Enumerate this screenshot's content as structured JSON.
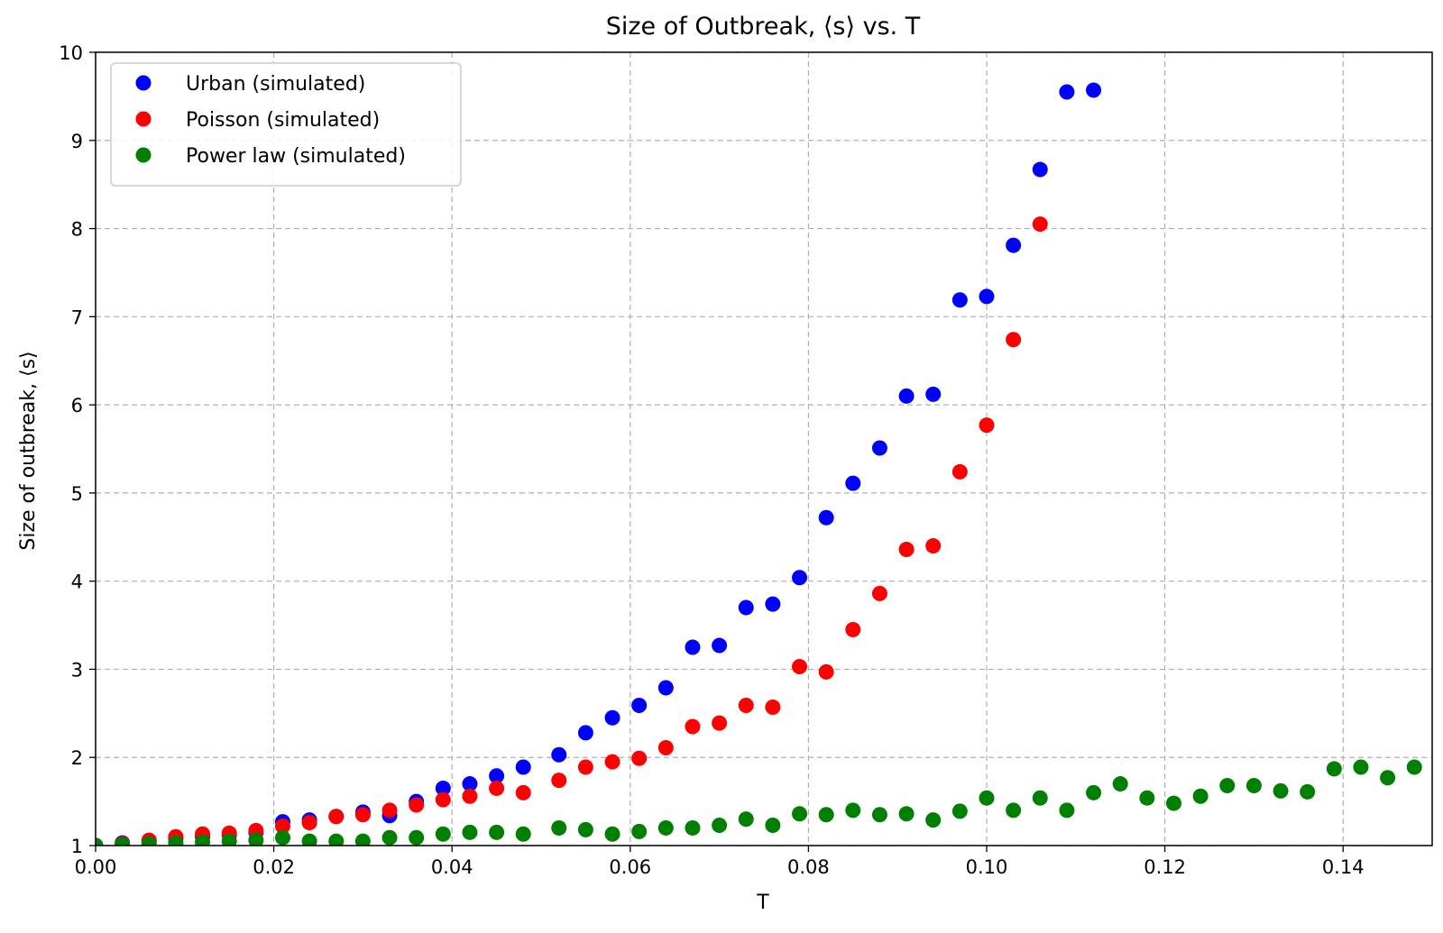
{
  "chart_data": {
    "type": "scatter",
    "title": "Size of Outbreak, ⟨s⟩ vs. T",
    "xlabel": "T",
    "ylabel": "Size of outbreak, ⟨s⟩",
    "xlim": [
      0.0,
      0.15
    ],
    "ylim": [
      1,
      10
    ],
    "xticks": [
      0.0,
      0.02,
      0.04,
      0.06,
      0.08,
      0.1,
      0.12,
      0.14
    ],
    "xtick_labels": [
      "0.00",
      "0.02",
      "0.04",
      "0.06",
      "0.08",
      "0.10",
      "0.12",
      "0.14"
    ],
    "yticks": [
      1,
      2,
      3,
      4,
      5,
      6,
      7,
      8,
      9,
      10
    ],
    "ytick_labels": [
      "1",
      "2",
      "3",
      "4",
      "5",
      "6",
      "7",
      "8",
      "9",
      "10"
    ],
    "grid": true,
    "legend_position": "top-left",
    "series": [
      {
        "name": "Urban (simulated)",
        "color": "#0000ff",
        "x": [
          0.0,
          0.003,
          0.006,
          0.009,
          0.012,
          0.015,
          0.018,
          0.021,
          0.024,
          0.027,
          0.03,
          0.033,
          0.036,
          0.039,
          0.042,
          0.045,
          0.048,
          0.052,
          0.055,
          0.058,
          0.061,
          0.064,
          0.067,
          0.07,
          0.073,
          0.076,
          0.079,
          0.082,
          0.085,
          0.088,
          0.091,
          0.094,
          0.097,
          0.1,
          0.103,
          0.106,
          0.109,
          0.112
        ],
        "y": [
          1.0,
          1.03,
          1.05,
          1.08,
          1.1,
          1.12,
          1.15,
          1.27,
          1.29,
          1.33,
          1.38,
          1.34,
          1.5,
          1.65,
          1.7,
          1.79,
          1.89,
          2.03,
          2.28,
          2.45,
          2.59,
          2.79,
          3.25,
          3.27,
          3.7,
          3.74,
          4.04,
          4.72,
          5.11,
          5.51,
          6.1,
          6.12,
          7.19,
          7.23,
          7.81,
          8.67,
          9.55,
          9.57
        ]
      },
      {
        "name": "Poisson (simulated)",
        "color": "#ff0000",
        "x": [
          0.0,
          0.003,
          0.006,
          0.009,
          0.012,
          0.015,
          0.018,
          0.021,
          0.024,
          0.027,
          0.03,
          0.033,
          0.036,
          0.039,
          0.042,
          0.045,
          0.048,
          0.052,
          0.055,
          0.058,
          0.061,
          0.064,
          0.067,
          0.07,
          0.073,
          0.076,
          0.079,
          0.082,
          0.085,
          0.088,
          0.091,
          0.094,
          0.097,
          0.1,
          0.103,
          0.106
        ],
        "y": [
          1.0,
          1.02,
          1.06,
          1.1,
          1.13,
          1.14,
          1.17,
          1.22,
          1.26,
          1.33,
          1.35,
          1.4,
          1.46,
          1.52,
          1.56,
          1.65,
          1.6,
          1.74,
          1.89,
          1.95,
          1.99,
          2.11,
          2.35,
          2.39,
          2.59,
          2.57,
          3.03,
          2.97,
          3.45,
          3.86,
          4.36,
          4.4,
          5.24,
          5.77,
          6.74,
          8.05
        ]
      },
      {
        "name": "Power law (simulated)",
        "color": "#008000",
        "x": [
          0.0,
          0.003,
          0.006,
          0.009,
          0.012,
          0.015,
          0.018,
          0.021,
          0.024,
          0.027,
          0.03,
          0.033,
          0.036,
          0.039,
          0.042,
          0.045,
          0.048,
          0.052,
          0.055,
          0.058,
          0.061,
          0.064,
          0.067,
          0.07,
          0.073,
          0.076,
          0.079,
          0.082,
          0.085,
          0.088,
          0.091,
          0.094,
          0.097,
          0.1,
          0.103,
          0.106,
          0.109,
          0.112,
          0.115,
          0.118,
          0.121,
          0.124,
          0.127,
          0.13,
          0.133,
          0.136,
          0.139,
          0.142,
          0.145,
          0.148
        ],
        "y": [
          1.0,
          1.01,
          1.02,
          1.03,
          1.04,
          1.05,
          1.06,
          1.09,
          1.05,
          1.05,
          1.05,
          1.09,
          1.09,
          1.13,
          1.15,
          1.15,
          1.13,
          1.2,
          1.18,
          1.13,
          1.16,
          1.2,
          1.2,
          1.23,
          1.3,
          1.23,
          1.36,
          1.35,
          1.4,
          1.35,
          1.36,
          1.29,
          1.39,
          1.54,
          1.4,
          1.54,
          1.4,
          1.6,
          1.7,
          1.54,
          1.48,
          1.56,
          1.68,
          1.68,
          1.62,
          1.61,
          1.87,
          1.89,
          1.77,
          1.89
        ]
      }
    ]
  }
}
